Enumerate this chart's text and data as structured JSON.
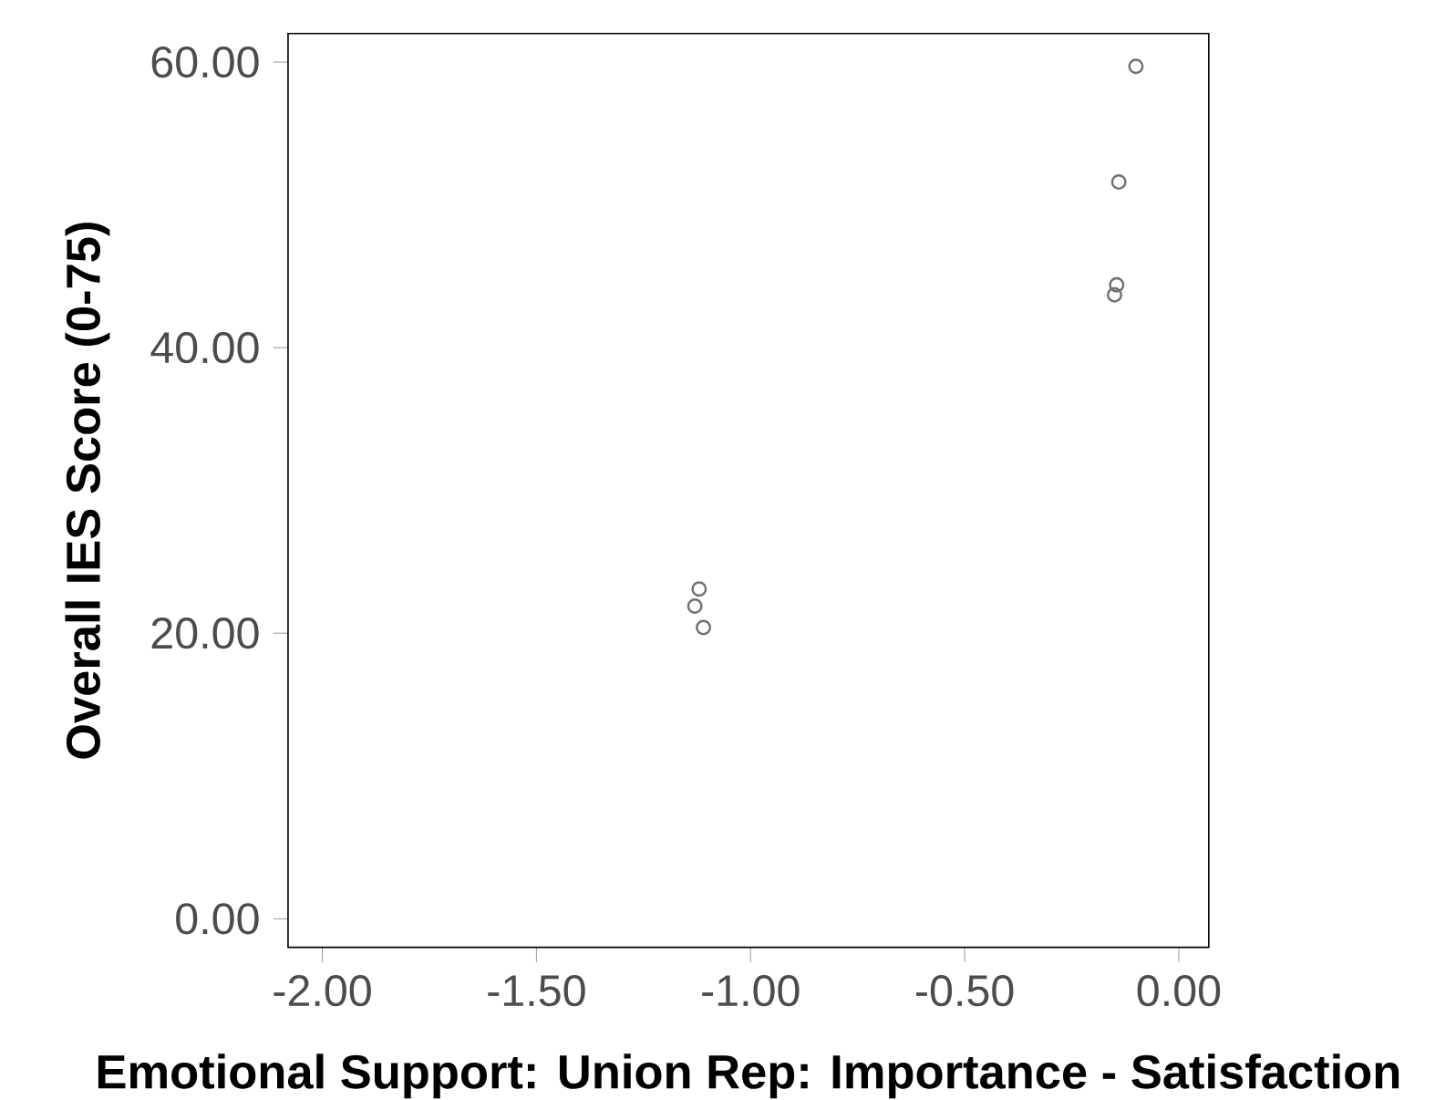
{
  "chart_data": {
    "type": "scatter",
    "xlabel": "Emotional Support: Union Rep: Importance - Satisfaction",
    "ylabel": "Overall IES Score (0-75)",
    "x": [
      -1.12,
      -1.13,
      -1.11,
      -0.1,
      -0.14,
      -0.145,
      -0.15
    ],
    "values": [
      23.1,
      21.9,
      20.4,
      59.7,
      51.6,
      44.4,
      43.7
    ],
    "color": "#707070",
    "marker": "circle",
    "xlim": [
      -2.08,
      0.07
    ],
    "ylim": [
      -2.0,
      62.0
    ],
    "xticks": [
      {
        "value": -2,
        "label": "-2.00"
      },
      {
        "value": -1.5,
        "label": "-1.50"
      },
      {
        "value": -1,
        "label": "-1.00"
      },
      {
        "value": -0.5,
        "label": "-0.50"
      },
      {
        "value": 0,
        "label": "0.00"
      }
    ],
    "yticks": [
      {
        "value": 0,
        "label": "0.00"
      },
      {
        "value": 20,
        "label": "20.00"
      },
      {
        "value": 40,
        "label": "40.00"
      },
      {
        "value": 60,
        "label": "60.00"
      }
    ]
  }
}
